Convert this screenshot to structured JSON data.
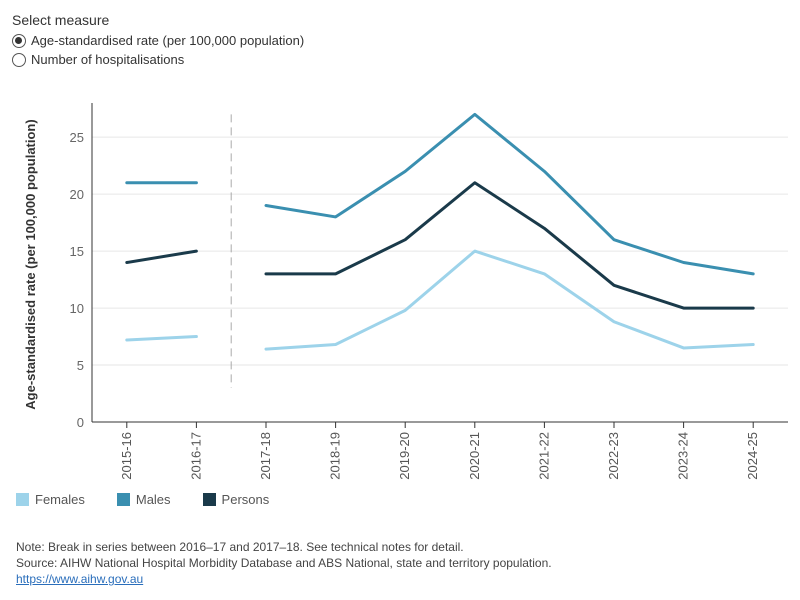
{
  "measure_selector": {
    "title": "Select measure",
    "options": [
      {
        "label": "Age-standardised rate (per 100,000 population)",
        "selected": true
      },
      {
        "label": "Number of hospitalisations",
        "selected": false
      }
    ]
  },
  "chart_data": {
    "type": "line",
    "categories": [
      "2015-16",
      "2016-17",
      "2017-18",
      "2018-19",
      "2019-20",
      "2020-21",
      "2021-22",
      "2022-23",
      "2023-24",
      "2024-25"
    ],
    "ylabel": "Age-standardised rate (per 100,000 population)",
    "xlabel": "",
    "ylim": [
      0,
      28
    ],
    "yticks": [
      0,
      5,
      10,
      15,
      20,
      25
    ],
    "break_after_category": "2016-17",
    "grid": "horizontal",
    "legend_position": "bottom-left",
    "series": [
      {
        "name": "Females",
        "color": "#9dd3ea",
        "values": [
          7.2,
          7.5,
          6.4,
          6.8,
          9.8,
          15,
          13,
          8.8,
          6.5,
          6.8
        ]
      },
      {
        "name": "Males",
        "color": "#3a8fb0",
        "values": [
          21,
          21,
          19,
          18,
          22,
          27,
          22,
          16,
          14,
          13
        ]
      },
      {
        "name": "Persons",
        "color": "#1a3a4a",
        "values": [
          14,
          15,
          13,
          13,
          16,
          21,
          17,
          12,
          10,
          10
        ]
      }
    ]
  },
  "notes": {
    "note": "Note: Break in series between 2016–17 and 2017–18. See technical notes for detail.",
    "source": "Source: AIHW National Hospital Morbidity Database and ABS National, state and territory population.",
    "link": "https://www.aihw.gov.au"
  }
}
